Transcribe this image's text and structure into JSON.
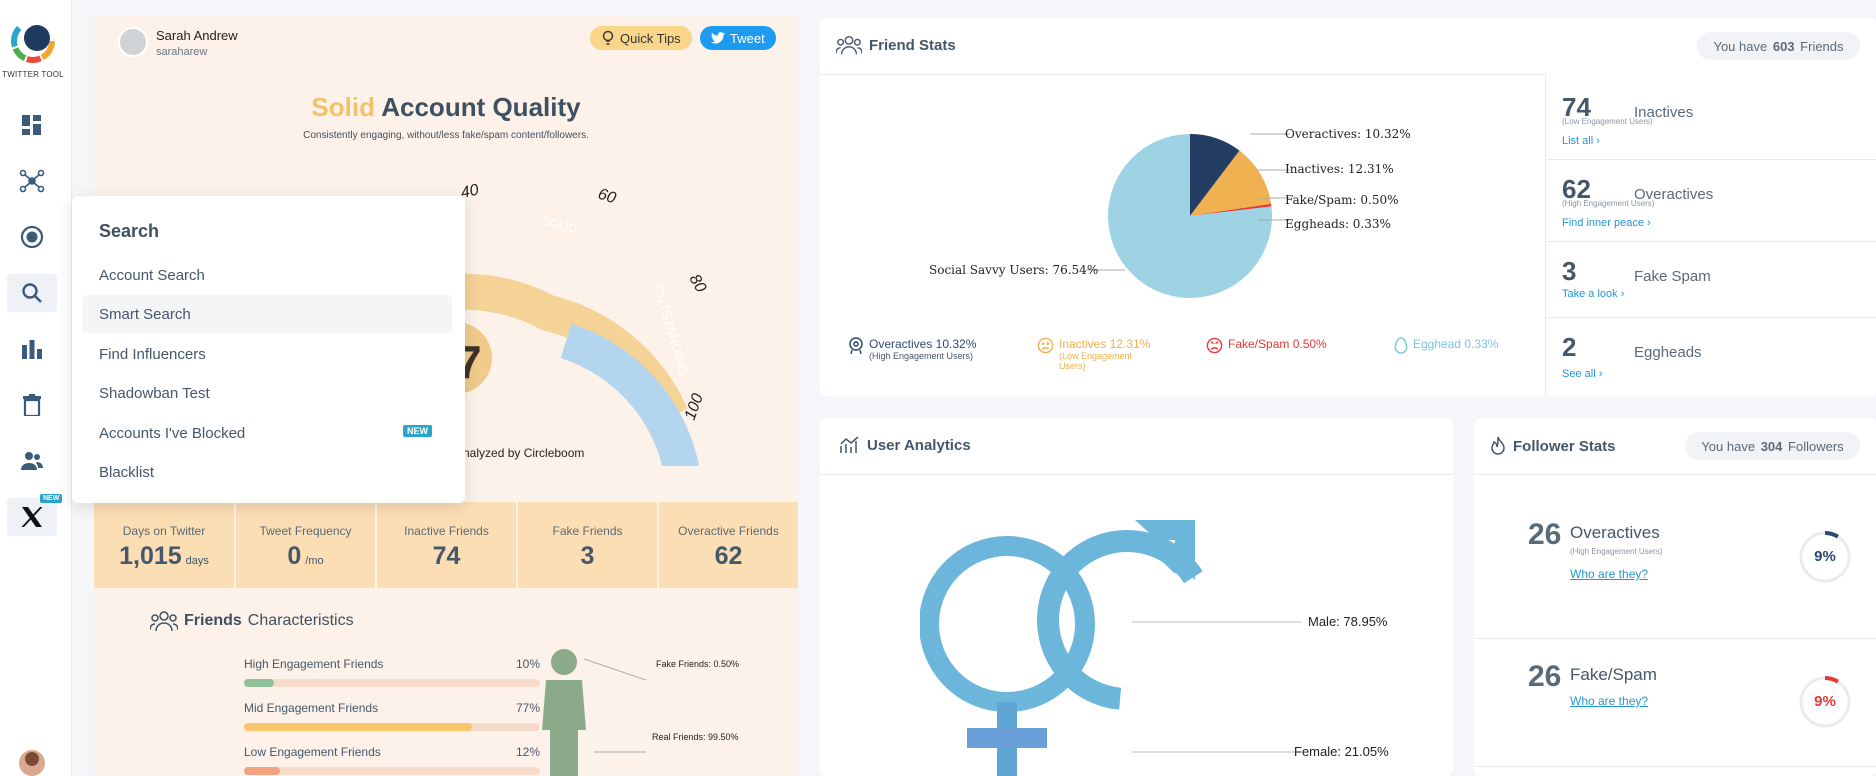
{
  "sidebar": {
    "logo_text": "TWITTER TOOL",
    "items": [
      {
        "icon": "dashboard-icon"
      },
      {
        "icon": "network-icon"
      },
      {
        "icon": "target-icon"
      },
      {
        "icon": "search-icon"
      },
      {
        "icon": "bar-chart-icon"
      },
      {
        "icon": "trash-icon"
      },
      {
        "icon": "users-icon"
      },
      {
        "icon": "x-logo-icon",
        "badge": "NEW"
      }
    ]
  },
  "profile": {
    "name": "Sarah Andrew",
    "handle": "saraharew",
    "quick_tips": "Quick Tips",
    "tweet": "Tweet"
  },
  "quality": {
    "title_accent": "Solid",
    "title_rest": "Account Quality",
    "subtitle": "Consistently engaging, without/less fake/spam content/followers.",
    "gauge_ticks": [
      "40",
      "60",
      "80",
      "100"
    ],
    "gauge_bands": [
      "SOLID",
      "OUTSTANDING"
    ],
    "score_partial": "7",
    "analyzed_by": "nalyzed by Circleboom"
  },
  "strip": [
    {
      "label": "Days on Twitter",
      "value": "1,015",
      "unit": "days"
    },
    {
      "label": "Tweet Frequency",
      "value": "0",
      "unit": "/mo"
    },
    {
      "label": "Inactive Friends",
      "value": "74",
      "unit": ""
    },
    {
      "label": "Fake Friends",
      "value": "3",
      "unit": ""
    },
    {
      "label": "Overactive Friends",
      "value": "62",
      "unit": ""
    }
  ],
  "friends_characteristics": {
    "title_bold": "Friends",
    "title_rest": "Characteristics",
    "rows": [
      {
        "label": "High Engagement Friends",
        "pct": "10%",
        "value": 10,
        "color": "#8fc09a"
      },
      {
        "label": "Mid Engagement Friends",
        "pct": "77%",
        "value": 77,
        "color": "#f9c46b"
      },
      {
        "label": "Low Engagement Friends",
        "pct": "12%",
        "value": 12,
        "color": "#f3a27d"
      }
    ],
    "fake_label": "Fake Friends: 0.50%",
    "real_label": "Real Friends: 99.50%"
  },
  "search_menu": {
    "heading": "Search",
    "items": [
      "Account Search",
      "Smart Search",
      "Find Influencers",
      "Shadowban Test",
      "Accounts I've Blocked",
      "Blacklist"
    ],
    "new_badge": "NEW"
  },
  "friend_stats": {
    "title": "Friend Stats",
    "pill_pre": "You have",
    "pill_count": "603",
    "pill_post": "Friends",
    "pie_labels": [
      "Overactives: 10.32%",
      "Inactives: 12.31%",
      "Fake/Spam: 0.50%",
      "Eggheads: 0.33%",
      "Social Savvy Users: 76.54%"
    ],
    "legend": [
      {
        "label": "Overactives 10.32%",
        "sub": "(High Engagement Users)",
        "color": "#2c4a73",
        "icon": "overactive-icon"
      },
      {
        "label": "Inactives 12.31%",
        "sub": "(Low Engagement Users)",
        "color": "#f0b04d",
        "icon": "sad-face-icon"
      },
      {
        "label": "Fake/Spam 0.50%",
        "sub": "",
        "color": "#e53935",
        "icon": "angry-face-icon"
      },
      {
        "label": "Egghead 0.33%",
        "sub": "",
        "color": "#7cc6e0",
        "icon": "egg-icon"
      }
    ],
    "side": [
      {
        "num": "74",
        "label": "Inactives",
        "sub": "(Low Engagement Users)",
        "link": "List all"
      },
      {
        "num": "62",
        "label": "Overactives",
        "sub": "(High Engagement Users)",
        "link": "Find inner peace"
      },
      {
        "num": "3",
        "label": "Fake Spam",
        "sub": "",
        "link": "Take a look"
      },
      {
        "num": "2",
        "label": "Eggheads",
        "sub": "",
        "link": "See all"
      }
    ]
  },
  "user_analytics": {
    "title": "User Analytics",
    "male": "Male: 78.95%",
    "female": "Female: 21.05%"
  },
  "follower_stats": {
    "title": "Follower Stats",
    "pill_pre": "You have",
    "pill_count": "304",
    "pill_post": "Followers",
    "rows": [
      {
        "num": "26",
        "label": "Overactives",
        "sub": "(High Engagement Users)",
        "link": "Who are they?",
        "pct": "9%",
        "value": 9,
        "color": "#2c4a73"
      },
      {
        "num": "26",
        "label": "Fake/Spam",
        "sub": "",
        "link": "Who are they?",
        "pct": "9%",
        "value": 9,
        "color": "#e53935"
      }
    ]
  },
  "chart_data": [
    {
      "type": "pie",
      "title": "",
      "categories": [
        "Overactives",
        "Inactives",
        "Fake/Spam",
        "Eggheads",
        "Social Savvy Users"
      ],
      "values": [
        10.32,
        12.31,
        0.5,
        0.33,
        76.54
      ],
      "colors": [
        "#233d63",
        "#f0b150",
        "#e53935",
        "#8fd3e6",
        "#9ed3e4"
      ]
    },
    {
      "type": "bar",
      "title": "",
      "categories": [
        "High Engagement Friends",
        "Mid Engagement Friends",
        "Low Engagement Friends"
      ],
      "values": [
        10,
        77,
        12
      ]
    },
    {
      "type": "pie",
      "title": "",
      "categories": [
        "Male",
        "Female"
      ],
      "values": [
        78.95,
        21.05
      ]
    }
  ]
}
